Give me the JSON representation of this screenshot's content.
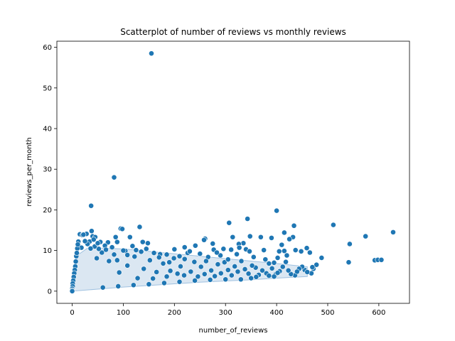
{
  "chart_data": {
    "type": "scatter",
    "title": "Scatterplot of number of reviews vs monthly reviews",
    "xlabel": "number_of_reviews",
    "ylabel": "reviews_per_month",
    "xlim": [
      -30,
      660
    ],
    "ylim": [
      -3,
      61.5
    ],
    "xticks": [
      0,
      100,
      200,
      300,
      400,
      500,
      600
    ],
    "yticks": [
      0,
      10,
      20,
      30,
      40,
      50,
      60
    ],
    "grid": false,
    "colors": {
      "marker": "#1f77b4",
      "edge": "#ffffff"
    },
    "points": [
      [
        155,
        58.5
      ],
      [
        82,
        28
      ],
      [
        37,
        21
      ],
      [
        400,
        19.8
      ],
      [
        343,
        17.8
      ],
      [
        307,
        16.8
      ],
      [
        511,
        16.3
      ],
      [
        434,
        16.1
      ],
      [
        132,
        15.8
      ],
      [
        95,
        15.4
      ],
      [
        98,
        15.3
      ],
      [
        628,
        14.5
      ],
      [
        415,
        14.4
      ],
      [
        38,
        14.8
      ],
      [
        15,
        14
      ],
      [
        20,
        13.8
      ],
      [
        28,
        14.1
      ],
      [
        40,
        13.5
      ],
      [
        45,
        13.3
      ],
      [
        85,
        13.3
      ],
      [
        113,
        13.3
      ],
      [
        314,
        13.3
      ],
      [
        348,
        13.5
      ],
      [
        369,
        13.3
      ],
      [
        390,
        13.1
      ],
      [
        432,
        13.3
      ],
      [
        574,
        13.5
      ],
      [
        425,
        12.8
      ],
      [
        260,
        12.9
      ],
      [
        258,
        12.6
      ],
      [
        34,
        12.2
      ],
      [
        55,
        12.1
      ],
      [
        70,
        12.0
      ],
      [
        88,
        12.1
      ],
      [
        138,
        12.1
      ],
      [
        148,
        11.8
      ],
      [
        335,
        11.8
      ],
      [
        326,
        11.6
      ],
      [
        410,
        11.4
      ],
      [
        543,
        11.6
      ],
      [
        220,
        10.8
      ],
      [
        241,
        11.2
      ],
      [
        275,
        11.7
      ],
      [
        277,
        10.2
      ],
      [
        296,
        10.4
      ],
      [
        311,
        10.2
      ],
      [
        327,
        10.7
      ],
      [
        340,
        10.3
      ],
      [
        347,
        9.8
      ],
      [
        375,
        10.1
      ],
      [
        405,
        9.8
      ],
      [
        420,
        8.8
      ],
      [
        437,
        10.1
      ],
      [
        448,
        9.8
      ],
      [
        459,
        10.6
      ],
      [
        465,
        9.5
      ],
      [
        488,
        8.2
      ],
      [
        541,
        7.1
      ],
      [
        592,
        7.6
      ],
      [
        598,
        7.7
      ],
      [
        605,
        7.7
      ],
      [
        478,
        6.5
      ],
      [
        472,
        5.5
      ],
      [
        468,
        4.4
      ],
      [
        455,
        5.2
      ],
      [
        450,
        6.0
      ],
      [
        444,
        5.5
      ],
      [
        436,
        3.9
      ],
      [
        428,
        4.2
      ],
      [
        423,
        5.1
      ],
      [
        418,
        7.2
      ],
      [
        412,
        6.0
      ],
      [
        406,
        4.9
      ],
      [
        398,
        4.1
      ],
      [
        391,
        5.6
      ],
      [
        385,
        6.8
      ],
      [
        380,
        4.4
      ],
      [
        372,
        5.1
      ],
      [
        365,
        4.0
      ],
      [
        359,
        5.8
      ],
      [
        352,
        6.3
      ],
      [
        345,
        4.3
      ],
      [
        338,
        5.4
      ],
      [
        331,
        7.4
      ],
      [
        324,
        4.8
      ],
      [
        318,
        6.1
      ],
      [
        312,
        3.9
      ],
      [
        305,
        5.2
      ],
      [
        298,
        7.1
      ],
      [
        291,
        4.4
      ],
      [
        285,
        6.6
      ],
      [
        279,
        3.7
      ],
      [
        272,
        5.1
      ],
      [
        266,
        8.4
      ],
      [
        259,
        4.2
      ],
      [
        252,
        6.0
      ],
      [
        246,
        3.6
      ],
      [
        239,
        7.2
      ],
      [
        232,
        4.8
      ],
      [
        226,
        9.4
      ],
      [
        219,
        3.9
      ],
      [
        212,
        6.1
      ],
      [
        206,
        4.3
      ],
      [
        199,
        8.1
      ],
      [
        192,
        5.0
      ],
      [
        185,
        3.6
      ],
      [
        178,
        6.8
      ],
      [
        172,
        9.1
      ],
      [
        165,
        4.7
      ],
      [
        158,
        3.1
      ],
      [
        152,
        7.6
      ],
      [
        145,
        10.4
      ],
      [
        140,
        5.5
      ],
      [
        128,
        3.2
      ],
      [
        122,
        8.5
      ],
      [
        118,
        11.1
      ],
      [
        108,
        6.3
      ],
      [
        104,
        9.9
      ],
      [
        92,
        4.6
      ],
      [
        78,
        10.8
      ],
      [
        72,
        7.4
      ],
      [
        64,
        11.2
      ],
      [
        58,
        9.5
      ],
      [
        52,
        10.4
      ],
      [
        48,
        8.1
      ],
      [
        44,
        11.0
      ],
      [
        30,
        11.6
      ],
      [
        25,
        12.3
      ],
      [
        18,
        10.7
      ],
      [
        12,
        12.2
      ],
      [
        10,
        10.5
      ],
      [
        8,
        8.6
      ],
      [
        7,
        7.3
      ],
      [
        6,
        6.1
      ],
      [
        5,
        5.2
      ],
      [
        4,
        4.4
      ],
      [
        3,
        3.5
      ],
      [
        2,
        2.6
      ],
      [
        1,
        1.9
      ],
      [
        1,
        1.2
      ],
      [
        0,
        0.6
      ],
      [
        0,
        0.2
      ],
      [
        0,
        0.0
      ],
      [
        9,
        9.4
      ],
      [
        11,
        11.5
      ],
      [
        385,
        3.8
      ],
      [
        395,
        3.6
      ],
      [
        402,
        4.5
      ],
      [
        440,
        4.8
      ],
      [
        460,
        4.7
      ],
      [
        470,
        5.9
      ],
      [
        350,
        3.2
      ],
      [
        360,
        3.5
      ],
      [
        330,
        2.9
      ],
      [
        300,
        2.9
      ],
      [
        270,
        2.8
      ],
      [
        240,
        2.6
      ],
      [
        210,
        2.3
      ],
      [
        180,
        2.0
      ],
      [
        150,
        1.7
      ],
      [
        120,
        1.5
      ],
      [
        90,
        1.2
      ],
      [
        60,
        0.9
      ],
      [
        200,
        10.3
      ],
      [
        185,
        9.0
      ],
      [
        230,
        9.8
      ],
      [
        250,
        9.2
      ],
      [
        290,
        8.8
      ],
      [
        305,
        7.8
      ],
      [
        210,
        8.6
      ],
      [
        160,
        9.4
      ],
      [
        170,
        8.3
      ],
      [
        135,
        9.7
      ],
      [
        125,
        10.1
      ],
      [
        100,
        10.0
      ],
      [
        82,
        9.0
      ],
      [
        66,
        10.2
      ],
      [
        36,
        10.5
      ],
      [
        42,
        12.7
      ],
      [
        22,
        13.9
      ],
      [
        50,
        11.8
      ],
      [
        108,
        8.9
      ],
      [
        88,
        7.6
      ],
      [
        190,
        7.1
      ],
      [
        220,
        7.9
      ],
      [
        262,
        7.4
      ],
      [
        283,
        9.5
      ],
      [
        322,
        9.1
      ],
      [
        355,
        8.4
      ],
      [
        378,
        7.8
      ],
      [
        402,
        8.2
      ],
      [
        415,
        9.9
      ],
      [
        395,
        7.0
      ]
    ],
    "cloud_envelope": {
      "upper": [
        [
          0,
          0
        ],
        [
          5,
          5
        ],
        [
          12,
          9
        ],
        [
          30,
          10.6
        ],
        [
          60,
          10.6
        ],
        [
          100,
          10.4
        ],
        [
          150,
          9.8
        ],
        [
          200,
          9.2
        ],
        [
          250,
          8.6
        ],
        [
          300,
          8.0
        ],
        [
          350,
          7.4
        ],
        [
          400,
          6.8
        ],
        [
          430,
          6.4
        ],
        [
          460,
          6.0
        ]
      ],
      "lower": [
        [
          460,
          3.6
        ],
        [
          430,
          3.4
        ],
        [
          400,
          3.2
        ],
        [
          350,
          2.8
        ],
        [
          300,
          2.5
        ],
        [
          250,
          2.2
        ],
        [
          200,
          1.8
        ],
        [
          150,
          1.4
        ],
        [
          100,
          1.0
        ],
        [
          50,
          0.5
        ],
        [
          0,
          0
        ]
      ]
    }
  }
}
